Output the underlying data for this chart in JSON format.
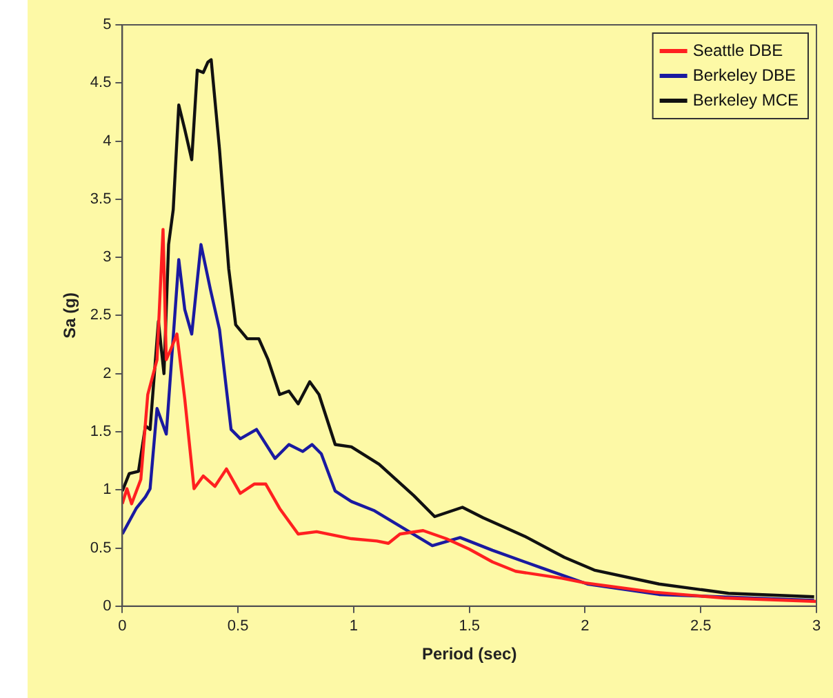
{
  "chart_data": {
    "type": "line",
    "xlabel": "Period (sec)",
    "ylabel": "Sa (g)",
    "xlim": [
      0,
      3
    ],
    "xticks": [
      0,
      0.5,
      1,
      1.5,
      2,
      2.5,
      3
    ],
    "ylim": [
      0,
      5
    ],
    "yticks": [
      0,
      0.5,
      1,
      1.5,
      2,
      2.5,
      3,
      3.5,
      4,
      4.5,
      5
    ],
    "grid": false,
    "legend": "top right",
    "marker": "none",
    "line_style": "solid",
    "series": [
      {
        "name": "Seattle DBE",
        "color": "#ff2020",
        "x": [
          0,
          0.02,
          0.04,
          0.08,
          0.11,
          0.15,
          0.176,
          0.19,
          0.21,
          0.236,
          0.27,
          0.31,
          0.35,
          0.4,
          0.45,
          0.51,
          0.57,
          0.62,
          0.68,
          0.76,
          0.84,
          0.99,
          1.1,
          1.15,
          1.2,
          1.3,
          1.4,
          1.5,
          1.6,
          1.7,
          1.9,
          2.0,
          2.3,
          2.6,
          3.0
        ],
        "values": [
          0.88,
          1.01,
          0.88,
          1.09,
          1.82,
          2.12,
          3.24,
          2.12,
          2.21,
          2.34,
          1.78,
          1.01,
          1.12,
          1.03,
          1.18,
          0.97,
          1.05,
          1.05,
          0.84,
          0.62,
          0.64,
          0.58,
          0.56,
          0.54,
          0.62,
          0.65,
          0.58,
          0.49,
          0.38,
          0.3,
          0.24,
          0.2,
          0.12,
          0.07,
          0.04
        ]
      },
      {
        "name": "Berkeley DBE",
        "color": "#1a1aa0",
        "x": [
          0,
          0.06,
          0.1,
          0.12,
          0.15,
          0.19,
          0.244,
          0.27,
          0.3,
          0.34,
          0.38,
          0.42,
          0.47,
          0.51,
          0.58,
          0.66,
          0.72,
          0.78,
          0.82,
          0.86,
          0.92,
          0.99,
          1.09,
          1.34,
          1.46,
          1.6,
          1.81,
          2.01,
          2.32,
          2.99
        ],
        "values": [
          0.62,
          0.84,
          0.94,
          1.01,
          1.7,
          1.48,
          2.98,
          2.55,
          2.34,
          3.11,
          2.73,
          2.38,
          1.52,
          1.44,
          1.52,
          1.27,
          1.39,
          1.33,
          1.39,
          1.31,
          0.99,
          0.9,
          0.82,
          0.52,
          0.59,
          0.48,
          0.33,
          0.19,
          0.1,
          0.05
        ]
      },
      {
        "name": "Berkeley MCE",
        "color": "#111111",
        "x": [
          0,
          0.03,
          0.07,
          0.1,
          0.12,
          0.156,
          0.18,
          0.2,
          0.22,
          0.244,
          0.27,
          0.3,
          0.324,
          0.35,
          0.37,
          0.384,
          0.42,
          0.46,
          0.49,
          0.54,
          0.59,
          0.63,
          0.68,
          0.72,
          0.76,
          0.81,
          0.85,
          0.92,
          0.99,
          1.11,
          1.26,
          1.35,
          1.47,
          1.56,
          1.74,
          1.91,
          2.04,
          2.32,
          2.62,
          2.99
        ],
        "values": [
          0.99,
          1.14,
          1.16,
          1.55,
          1.52,
          2.45,
          2.0,
          3.11,
          3.41,
          4.31,
          4.1,
          3.84,
          4.61,
          4.59,
          4.68,
          4.7,
          3.93,
          2.9,
          2.42,
          2.3,
          2.3,
          2.12,
          1.82,
          1.85,
          1.74,
          1.93,
          1.82,
          1.39,
          1.37,
          1.22,
          0.95,
          0.77,
          0.85,
          0.76,
          0.6,
          0.42,
          0.31,
          0.19,
          0.11,
          0.08
        ]
      }
    ]
  }
}
